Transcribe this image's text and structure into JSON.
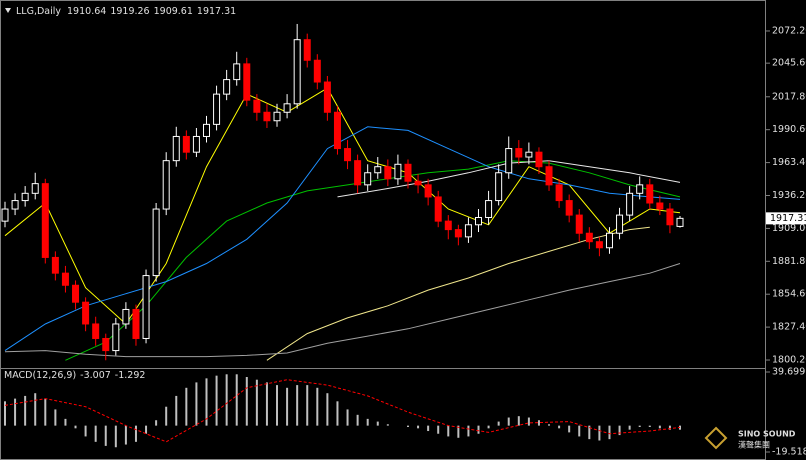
{
  "chart_data": [
    {
      "type": "candlestick",
      "title": "LLG,Daily",
      "ohlc_header": [
        1910.64,
        1919.26,
        1909.61,
        1917.31
      ],
      "last_price": 1917.31,
      "up_color": "#ffffff",
      "down_color": "#ff0000",
      "open": [
        1915,
        1925,
        1932,
        1938,
        1946,
        1885,
        1872,
        1862,
        1848,
        1830,
        1818,
        1808,
        1830,
        1842,
        1818,
        1870,
        1925,
        1965,
        1985,
        1972,
        1985,
        1995,
        2020,
        2032,
        2045,
        2015,
        2005,
        1998,
        2005,
        2012,
        2065,
        2048,
        2030,
        2005,
        1975,
        1965,
        1945,
        1955,
        1960,
        1950,
        1962,
        1948,
        1945,
        1935,
        1915,
        1908,
        1902,
        1912,
        1918,
        1932,
        1955,
        1975,
        1968,
        1972,
        1960,
        1945,
        1932,
        1920,
        1905,
        1898,
        1893,
        1905,
        1920,
        1938,
        1945,
        1930,
        1925,
        1910.64
      ],
      "high": [
        1931,
        1938,
        1944,
        1955,
        1950,
        1890,
        1878,
        1866,
        1852,
        1836,
        1822,
        1835,
        1848,
        1846,
        1875,
        1930,
        1972,
        1993,
        1990,
        1992,
        2002,
        2027,
        2040,
        2055,
        2050,
        2020,
        2012,
        2012,
        2020,
        2078,
        2070,
        2053,
        2035,
        2010,
        1982,
        1970,
        1962,
        1968,
        1966,
        1970,
        1966,
        1954,
        1950,
        1940,
        1920,
        1912,
        1918,
        1925,
        1940,
        1962,
        1985,
        1982,
        1980,
        1976,
        1965,
        1950,
        1937,
        1925,
        1910,
        1902,
        1910,
        1926,
        1944,
        1952,
        1950,
        1936,
        1930,
        1919.26
      ],
      "low": [
        1910,
        1920,
        1927,
        1933,
        1880,
        1866,
        1856,
        1842,
        1824,
        1812,
        1800,
        1804,
        1826,
        1812,
        1814,
        1865,
        1920,
        1960,
        1966,
        1968,
        1980,
        1990,
        2015,
        2027,
        2010,
        1998,
        1992,
        1993,
        2000,
        2008,
        2042,
        2024,
        1998,
        1970,
        1958,
        1938,
        1940,
        1950,
        1944,
        1945,
        1942,
        1938,
        1928,
        1910,
        1900,
        1895,
        1897,
        1906,
        1912,
        1928,
        1950,
        1962,
        1962,
        1954,
        1940,
        1926,
        1914,
        1898,
        1892,
        1886,
        1888,
        1900,
        1915,
        1933,
        1925,
        1920,
        1905,
        1909.61
      ],
      "close": [
        1925,
        1932,
        1938,
        1946,
        1885,
        1872,
        1862,
        1848,
        1830,
        1818,
        1808,
        1830,
        1842,
        1818,
        1870,
        1925,
        1965,
        1985,
        1972,
        1985,
        1995,
        2020,
        2032,
        2045,
        2015,
        2005,
        1998,
        2005,
        2012,
        2065,
        2048,
        2030,
        2005,
        1975,
        1965,
        1945,
        1955,
        1960,
        1950,
        1962,
        1948,
        1945,
        1935,
        1915,
        1908,
        1902,
        1912,
        1918,
        1932,
        1955,
        1975,
        1968,
        1972,
        1960,
        1945,
        1932,
        1920,
        1905,
        1898,
        1893,
        1905,
        1920,
        1938,
        1945,
        1930,
        1925,
        1912,
        1917.31
      ],
      "lines": [
        {
          "color": "#ffff00",
          "x": [
            0,
            4,
            8,
            12,
            16,
            20,
            24,
            28,
            32,
            36,
            40,
            44,
            48,
            52,
            56,
            60,
            64,
            67
          ],
          "values": [
            1903,
            1930,
            1860,
            1830,
            1880,
            1960,
            2020,
            2005,
            2025,
            1965,
            1955,
            1925,
            1912,
            1960,
            1945,
            1905,
            1925,
            1922
          ]
        },
        {
          "color": "#00c000",
          "x": [
            6,
            10,
            14,
            18,
            22,
            26,
            30,
            34,
            38,
            42,
            46,
            50,
            54,
            58,
            62,
            67
          ],
          "values": [
            1800,
            1815,
            1845,
            1885,
            1915,
            1930,
            1940,
            1945,
            1950,
            1955,
            1958,
            1965,
            1963,
            1955,
            1945,
            1935
          ]
        },
        {
          "color": "#1e90ff",
          "x": [
            0,
            4,
            8,
            12,
            16,
            20,
            24,
            28,
            32,
            36,
            40,
            44,
            48,
            52,
            56,
            60,
            64,
            67
          ],
          "values": [
            1808,
            1830,
            1845,
            1855,
            1865,
            1880,
            1900,
            1930,
            1975,
            1993,
            1990,
            1975,
            1960,
            1950,
            1945,
            1938,
            1935,
            1933
          ]
        },
        {
          "color": "#e8e8e8",
          "x": [
            33,
            38,
            42,
            46,
            50,
            54,
            58,
            62,
            67
          ],
          "values": [
            1935,
            1942,
            1948,
            1955,
            1963,
            1965,
            1960,
            1955,
            1947
          ]
        },
        {
          "color": "#f0e68c",
          "x": [
            26,
            30,
            34,
            38,
            42,
            46,
            50,
            54,
            58,
            62,
            64
          ],
          "values": [
            1800,
            1822,
            1835,
            1845,
            1858,
            1868,
            1880,
            1890,
            1900,
            1908,
            1910
          ]
        },
        {
          "color": "#a0a0a0",
          "x": [
            0,
            4,
            8,
            12,
            16,
            20,
            24,
            28,
            32,
            36,
            40,
            44,
            48,
            52,
            56,
            60,
            64,
            67
          ],
          "values": [
            1807,
            1808,
            1805,
            1803,
            1803,
            1803,
            1804,
            1806,
            1814,
            1820,
            1826,
            1834,
            1842,
            1850,
            1858,
            1865,
            1872,
            1880
          ]
        }
      ],
      "ylim": [
        1793.6,
        2094.5
      ],
      "yticks": [
        {
          "value": 2072.2,
          "label": "2072.20"
        },
        {
          "value": 2045.6,
          "label": "2045.60"
        },
        {
          "value": 2017.8,
          "label": "2017.80"
        },
        {
          "value": 1990.6,
          "label": "1990.60"
        },
        {
          "value": 1963.4,
          "label": "1963.40"
        },
        {
          "value": 1936.2,
          "label": "1936.20"
        },
        {
          "value": 1909.0,
          "label": "1909.00"
        },
        {
          "value": 1881.8,
          "label": "1881.80"
        },
        {
          "value": 1854.6,
          "label": "1854.60"
        },
        {
          "value": 1827.4,
          "label": "1827.40"
        },
        {
          "value": 1800.2,
          "label": "1800.20"
        }
      ]
    },
    {
      "type": "macd",
      "title": "MACD(12,26,9)",
      "header_values": [
        -3.007,
        -1.292
      ],
      "color": "#c0c0c0",
      "signal_color": "#ff0000",
      "values": [
        18,
        20,
        22,
        24,
        20,
        12,
        5,
        -2,
        -8,
        -12,
        -15,
        -16,
        -14,
        -12,
        -6,
        4,
        14,
        22,
        28,
        32,
        35,
        37,
        38,
        38,
        36,
        34,
        32,
        30,
        28,
        30,
        30,
        28,
        24,
        18,
        12,
        8,
        5,
        3,
        1,
        0,
        -1,
        -2,
        -4,
        -6,
        -8,
        -9,
        -8,
        -6,
        -2,
        3,
        6,
        7,
        6,
        4,
        1,
        -2,
        -5,
        -8,
        -10,
        -11,
        -10,
        -7,
        -3,
        -1,
        -1,
        -2,
        -3,
        -3.007
      ],
      "signal_x": [
        0,
        4,
        8,
        12,
        16,
        20,
        24,
        28,
        32,
        36,
        40,
        44,
        48,
        52,
        56,
        60,
        64,
        67
      ],
      "signal": [
        15,
        20,
        14,
        0,
        -12,
        5,
        28,
        34,
        30,
        22,
        10,
        0,
        -5,
        2,
        3,
        -6,
        -4,
        -1.292
      ],
      "ylim": [
        -19.518,
        39.699
      ],
      "yticks": [
        39.699,
        -19.518
      ]
    }
  ],
  "watermark": {
    "line1": "SINO SOUND",
    "line2": "漢聲集團"
  }
}
